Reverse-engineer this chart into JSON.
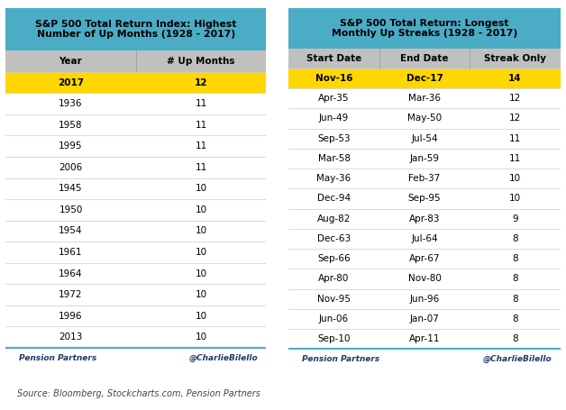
{
  "table1": {
    "title": "S&P 500 Total Return Index: Highest\nNumber of Up Months (1928 - 2017)",
    "col_headers": [
      "Year",
      "# Up Months"
    ],
    "highlight_row": 0,
    "highlight_color": "#FFD700",
    "header_bg": "#C0C0C0",
    "rows": [
      [
        "2017",
        "12"
      ],
      [
        "1936",
        "11"
      ],
      [
        "1958",
        "11"
      ],
      [
        "1995",
        "11"
      ],
      [
        "2006",
        "11"
      ],
      [
        "1945",
        "10"
      ],
      [
        "1950",
        "10"
      ],
      [
        "1954",
        "10"
      ],
      [
        "1961",
        "10"
      ],
      [
        "1964",
        "10"
      ],
      [
        "1972",
        "10"
      ],
      [
        "1996",
        "10"
      ],
      [
        "2013",
        "10"
      ]
    ],
    "footer_left": "Pension Partners",
    "footer_right": "@CharlieBilello"
  },
  "table2": {
    "title": "S&P 500 Total Return: Longest\nMonthly Up Streaks (1928 - 2017)",
    "col_headers": [
      "Start Date",
      "End Date",
      "Streak Only"
    ],
    "highlight_row": 0,
    "highlight_color": "#FFD700",
    "header_bg": "#C0C0C0",
    "rows": [
      [
        "Nov-16",
        "Dec-17",
        "14"
      ],
      [
        "Apr-35",
        "Mar-36",
        "12"
      ],
      [
        "Jun-49",
        "May-50",
        "12"
      ],
      [
        "Sep-53",
        "Jul-54",
        "11"
      ],
      [
        "Mar-58",
        "Jan-59",
        "11"
      ],
      [
        "May-36",
        "Feb-37",
        "10"
      ],
      [
        "Dec-94",
        "Sep-95",
        "10"
      ],
      [
        "Aug-82",
        "Apr-83",
        "9"
      ],
      [
        "Dec-63",
        "Jul-64",
        "8"
      ],
      [
        "Sep-66",
        "Apr-67",
        "8"
      ],
      [
        "Apr-80",
        "Nov-80",
        "8"
      ],
      [
        "Nov-95",
        "Jun-96",
        "8"
      ],
      [
        "Jun-06",
        "Jan-07",
        "8"
      ],
      [
        "Sep-10",
        "Apr-11",
        "8"
      ]
    ],
    "footer_left": "Pension Partners",
    "footer_right": "@CharlieBilello"
  },
  "source_text": "Source: Bloomberg, Stockcharts.com, Pension Partners",
  "title_bg": "#4BACC6",
  "border_color": "#4BACC6",
  "text_color": "#000000"
}
